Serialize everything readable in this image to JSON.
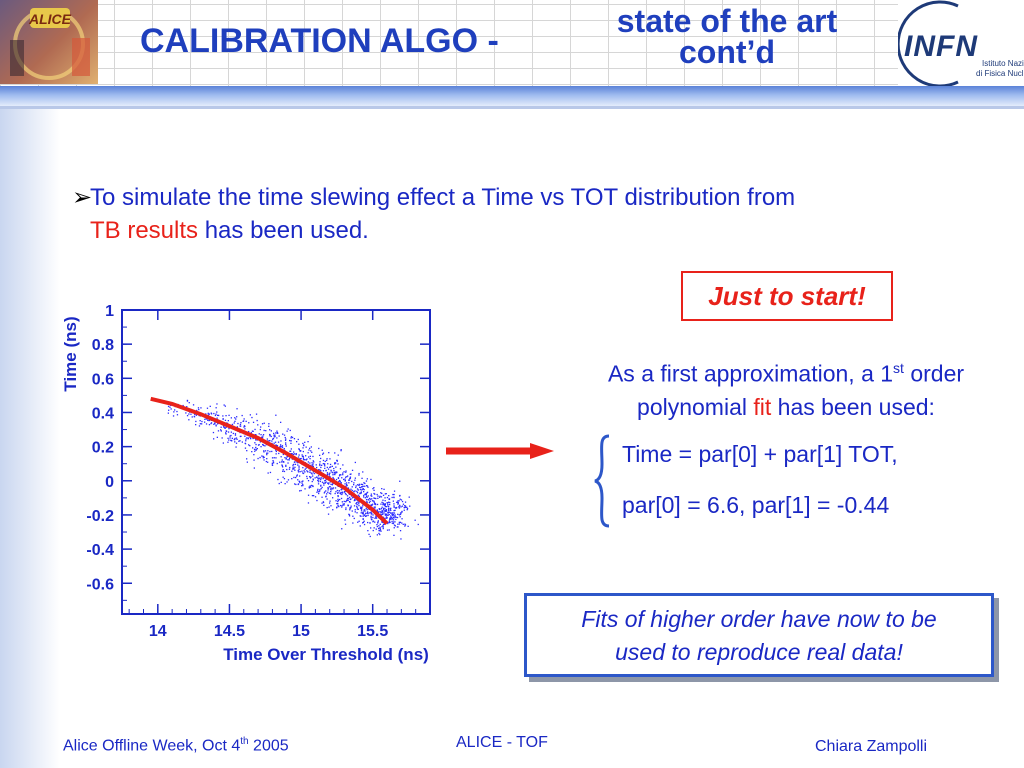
{
  "header": {
    "title_main": "CALIBRATION ALGO -",
    "title_sub_line1": "state of the art",
    "title_sub_line2": "cont’d",
    "infn_logo_text": "INFN",
    "infn_line1": "Istituto Nazionale",
    "infn_line2": "di Fisica Nucleare",
    "alice_logo_text": "ALICE"
  },
  "bullet": {
    "marker": "➢",
    "line1": "To simulate the time slewing effect a Time vs TOT distribution from",
    "line2_red": "TB results",
    "line2_rest": " has been used."
  },
  "callout": "Just to start!",
  "approx": {
    "part1": "As a first approximation, a 1",
    "sup": "st",
    "part2": " order",
    "line2_pre": "polynomial ",
    "line2_red": "fit",
    "line2_post": " has been used:"
  },
  "equation_line1": "Time = par[0] + par[1] TOT,",
  "equation_line2": "par[0] = 6.6, par[1] = -0.44",
  "fits_box": {
    "line1": "Fits of higher order have now to be",
    "line2": "used to reproduce real data!"
  },
  "footer": {
    "left": "Alice Offline Week, Oct 4",
    "left_sup": "th",
    "left_year": " 2005",
    "center": "ALICE - TOF",
    "right": "Chiara Zampolli"
  },
  "chart_data": {
    "type": "scatter",
    "xlabel": "Time Over Threshold (ns)",
    "ylabel": "Time (ns)",
    "xlim": [
      13.75,
      15.9
    ],
    "ylim": [
      -0.78,
      1.0
    ],
    "x_ticks": [
      "14",
      "14.5",
      "15",
      "15.5"
    ],
    "y_ticks": [
      "1",
      "0.8",
      "0.6",
      "0.4",
      "0.2",
      "0",
      "-0.2",
      "-0.4",
      "-0.6"
    ],
    "colors": {
      "points": "#2b2bff",
      "fit_line": "#e8221a",
      "frame": "#1a28c4"
    },
    "point_cloud": {
      "center_x": [
        14.2,
        14.5,
        14.8,
        15.05,
        15.3,
        15.55
      ],
      "center_y": [
        0.42,
        0.31,
        0.2,
        0.07,
        -0.05,
        -0.18
      ],
      "spread_y": [
        0.03,
        0.05,
        0.07,
        0.08,
        0.08,
        0.06
      ]
    },
    "series": [
      {
        "x": [
          13.95,
          14.1,
          14.3,
          14.5,
          14.7,
          14.9,
          15.1,
          15.3,
          15.5,
          15.6
        ],
        "y": [
          0.48,
          0.45,
          0.39,
          0.32,
          0.25,
          0.16,
          0.06,
          -0.04,
          -0.17,
          -0.25
        ]
      }
    ]
  }
}
